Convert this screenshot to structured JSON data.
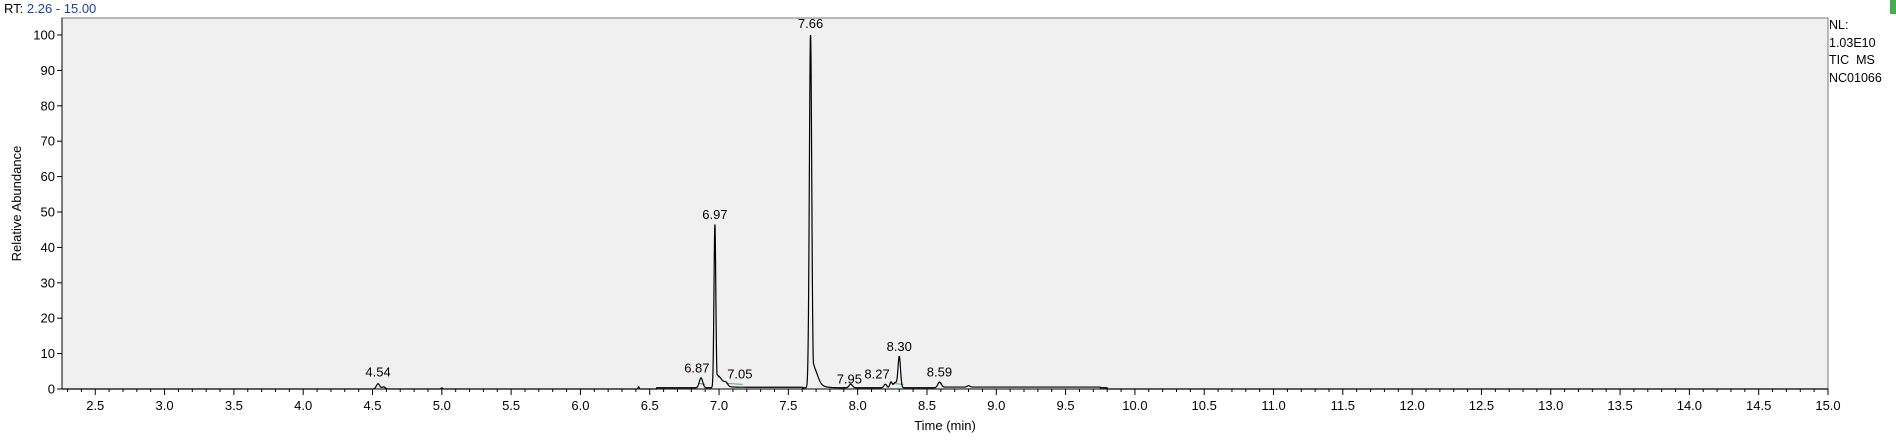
{
  "header": {
    "rt_prefix": "RT:",
    "rt_range": "2.26 - 15.00"
  },
  "info": {
    "nl_label": "NL:",
    "nl_value": "1.03E10",
    "scan_type": "TIC  MS",
    "sample": "NC01066"
  },
  "colors": {
    "plot_background": "#f0f0f0",
    "trace": "#000000",
    "baseline_marker": "#4caf50",
    "rt_value": "#1a3fa8"
  },
  "chart_data": {
    "type": "line",
    "title": "",
    "xlabel": "Time (min)",
    "ylabel": "Relative Abundance",
    "xlim": [
      2.26,
      15.0
    ],
    "ylim": [
      0,
      100
    ],
    "x_ticks": [
      2.5,
      3.0,
      3.5,
      4.0,
      4.5,
      5.0,
      5.5,
      6.0,
      6.5,
      7.0,
      7.5,
      8.0,
      8.5,
      9.0,
      9.5,
      10.0,
      10.5,
      11.0,
      11.5,
      12.0,
      12.5,
      13.0,
      13.5,
      14.0,
      14.5,
      15.0
    ],
    "y_ticks": [
      0,
      10,
      20,
      30,
      40,
      50,
      60,
      70,
      80,
      90,
      100
    ],
    "grid": false,
    "peaks": [
      {
        "rt": 4.54,
        "label": "4.54",
        "height": 1.5
      },
      {
        "rt": 6.87,
        "label": "6.87",
        "height": 2.8
      },
      {
        "rt": 6.97,
        "label": "6.97",
        "height": 46
      },
      {
        "rt": 7.05,
        "label": "7.05",
        "height": 1.0
      },
      {
        "rt": 7.66,
        "label": "7.66",
        "height": 100
      },
      {
        "rt": 7.95,
        "label": "7.95",
        "height": 1.0
      },
      {
        "rt": 8.27,
        "label": "8.27",
        "height": 1.5
      },
      {
        "rt": 8.3,
        "label": "8.30",
        "height": 8.8
      },
      {
        "rt": 8.59,
        "label": "8.59",
        "height": 1.6
      }
    ]
  }
}
